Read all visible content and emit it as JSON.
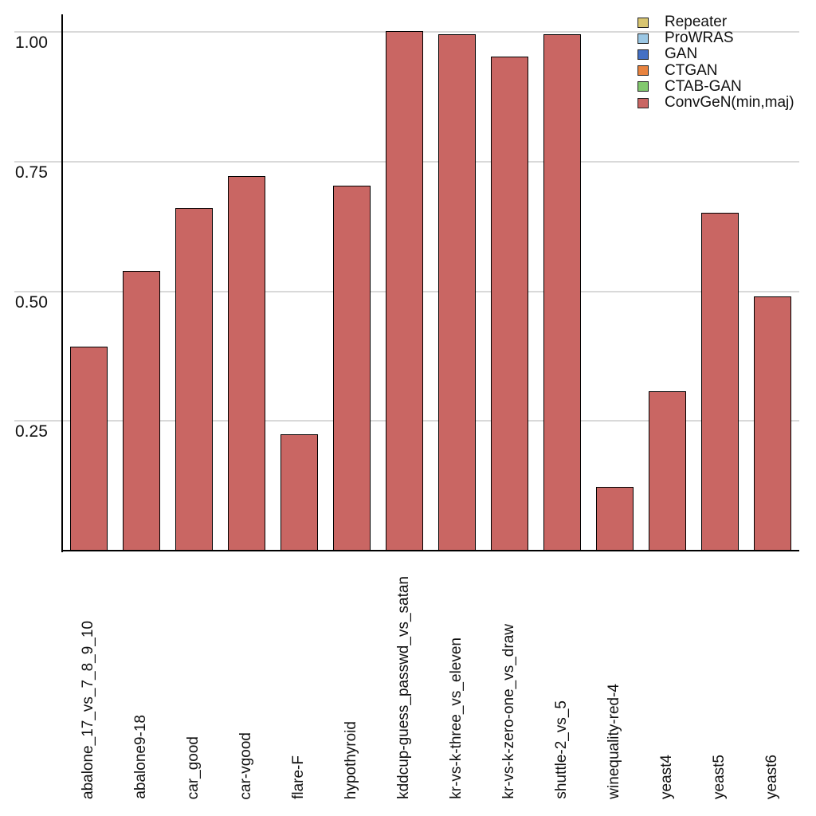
{
  "chart_data": {
    "type": "bar",
    "title": "",
    "xlabel": "",
    "ylabel": "",
    "series_shown": "ConvGeN(min,maj)",
    "categories": [
      "abalone_17_vs_7_8_9_10",
      "abalone9-18",
      "car_good",
      "car-vgood",
      "flare-F",
      "hypothyroid",
      "kddcup-guess_passwd_vs_satan",
      "kr-vs-k-three_vs_eleven",
      "kr-vs-k-zero-one_vs_draw",
      "shuttle-2_vs_5",
      "winequality-red-4",
      "yeast4",
      "yeast5",
      "yeast6"
    ],
    "values": [
      0.393,
      0.539,
      0.66,
      0.722,
      0.224,
      0.703,
      1.002,
      0.996,
      0.952,
      0.996,
      0.123,
      0.307,
      0.652,
      0.49
    ],
    "yticks": [
      0.25,
      0.5,
      0.75,
      1.0
    ],
    "ytick_labels": [
      "0.25",
      "0.50",
      "0.75",
      "1.00"
    ],
    "ylim": [
      0,
      1.035
    ],
    "grid": "horizontal",
    "gridline_color": "#d9d9d9",
    "axis_color": "#000000",
    "bar_color": "#C96663",
    "bar_edge_color": "#000000",
    "legend": {
      "position": "top-right",
      "entries": [
        {
          "label": "Repeater",
          "color": "#D8C571"
        },
        {
          "label": "ProWRAS",
          "color": "#9BC7E4"
        },
        {
          "label": "GAN",
          "color": "#4470C4"
        },
        {
          "label": "CTGAN",
          "color": "#E8833F"
        },
        {
          "label": "CTAB-GAN",
          "color": "#82C86E"
        },
        {
          "label": "ConvGeN(min,maj)",
          "color": "#C96663"
        }
      ]
    }
  }
}
